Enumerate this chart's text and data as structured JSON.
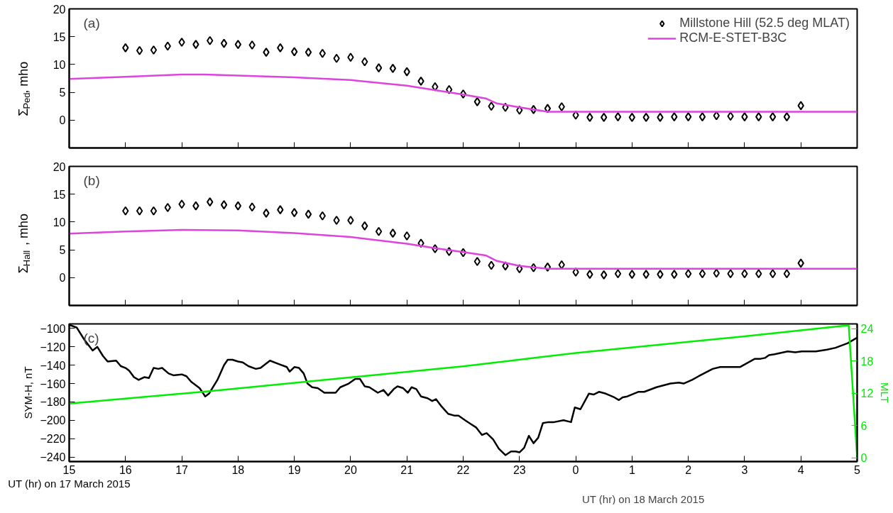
{
  "chart_data": [
    {
      "type": "scatter",
      "ylabel": "Σ$_{Ped}$, mho",
      "annotations": [
        "(a)"
      ],
      "xlim": [
        "2015-03-17T15:00",
        "2015-03-18T05:00"
      ],
      "xticks": [
        "2015-03-17T15:00",
        "2015-03-17T16:00",
        "2015-03-17T17:00",
        "2015-03-17T18:00",
        "2015-03-17T19:00",
        "2015-03-17T20:00",
        "2015-03-17T21:00",
        "2015-03-17T22:00",
        "2015-03-17T23:00",
        "2015-03-18T00:00",
        "2015-03-18T01:00",
        "2015-03-18T02:00",
        "2015-03-18T03:00",
        "2015-03-18T04:00",
        "2015-03-18T05:00"
      ],
      "ylim": [
        -5,
        20
      ],
      "yticks": [
        0,
        5,
        10,
        15,
        20
      ],
      "tick_labels": "y",
      "grid": false,
      "legend": "top right",
      "series": [
        {
          "name": "Millstone Hill (52.5 deg MLAT)",
          "marker": "diamond",
          "color": "#000000",
          "x": [
            "2015-03-17T16:00",
            "2015-03-17T16:15",
            "2015-03-17T16:30",
            "2015-03-17T16:45",
            "2015-03-17T17:00",
            "2015-03-17T17:15",
            "2015-03-17T17:30",
            "2015-03-17T17:45",
            "2015-03-17T18:00",
            "2015-03-17T18:15",
            "2015-03-17T18:30",
            "2015-03-17T18:45",
            "2015-03-17T19:00",
            "2015-03-17T19:15",
            "2015-03-17T19:30",
            "2015-03-17T19:45",
            "2015-03-17T20:00",
            "2015-03-17T20:15",
            "2015-03-17T20:30",
            "2015-03-17T20:45",
            "2015-03-17T21:00",
            "2015-03-17T21:15",
            "2015-03-17T21:30",
            "2015-03-17T21:45",
            "2015-03-17T22:00",
            "2015-03-17T22:15",
            "2015-03-17T22:30",
            "2015-03-17T22:45",
            "2015-03-17T23:00",
            "2015-03-17T23:15",
            "2015-03-17T23:30",
            "2015-03-17T23:45",
            "2015-03-18T00:00",
            "2015-03-18T00:15",
            "2015-03-18T00:30",
            "2015-03-18T00:45",
            "2015-03-18T01:00",
            "2015-03-18T01:15",
            "2015-03-18T01:30",
            "2015-03-18T01:45",
            "2015-03-18T02:00",
            "2015-03-18T02:15",
            "2015-03-18T02:30",
            "2015-03-18T02:45",
            "2015-03-18T03:00",
            "2015-03-18T03:15",
            "2015-03-18T03:30",
            "2015-03-18T03:45",
            "2015-03-18T04:00"
          ],
          "values": [
            13,
            12.5,
            12.6,
            13.3,
            14,
            13.6,
            14.3,
            13.8,
            13.6,
            13.5,
            12.2,
            13,
            12.3,
            12.2,
            12,
            11.1,
            11.3,
            10.5,
            9.4,
            9.3,
            8.7,
            7,
            6,
            5.5,
            4.7,
            3.3,
            2.5,
            2.3,
            1.8,
            1.9,
            2.1,
            2.4,
            0.9,
            0.5,
            0.5,
            0.6,
            0.5,
            0.5,
            0.5,
            0.6,
            0.6,
            0.6,
            0.8,
            0.7,
            0.6,
            0.6,
            0.6,
            0.6,
            2.6
          ]
        },
        {
          "name": "RCM-E-STET-B3C",
          "type": "line",
          "color": "#dd44dd",
          "x": [
            "2015-03-17T15:00",
            "2015-03-17T16:00",
            "2015-03-17T17:00",
            "2015-03-17T17:24",
            "2015-03-17T18:00",
            "2015-03-17T19:00",
            "2015-03-17T20:00",
            "2015-03-17T21:00",
            "2015-03-17T21:30",
            "2015-03-17T22:00",
            "2015-03-17T22:24",
            "2015-03-17T22:36",
            "2015-03-17T23:00",
            "2015-03-17T23:30",
            "2015-03-18T00:00",
            "2015-03-18T05:00"
          ],
          "values": [
            7.4,
            7.8,
            8.2,
            8.2,
            8,
            7.7,
            7.2,
            6.2,
            5.4,
            4.6,
            3.9,
            3.0,
            2.3,
            1.5,
            1.5,
            1.5
          ]
        }
      ]
    },
    {
      "type": "scatter",
      "ylabel": "Σ$_{Hall}$, mho",
      "annotations": [
        "(b)"
      ],
      "xlim": [
        "2015-03-17T15:00",
        "2015-03-18T05:00"
      ],
      "xticks": [
        "2015-03-17T15:00",
        "2015-03-17T16:00",
        "2015-03-17T17:00",
        "2015-03-17T18:00",
        "2015-03-17T19:00",
        "2015-03-17T20:00",
        "2015-03-17T21:00",
        "2015-03-17T22:00",
        "2015-03-17T23:00",
        "2015-03-18T00:00",
        "2015-03-18T01:00",
        "2015-03-18T02:00",
        "2015-03-18T03:00",
        "2015-03-18T04:00",
        "2015-03-18T05:00"
      ],
      "ylim": [
        -5,
        20
      ],
      "yticks": [
        0,
        5,
        10,
        15,
        20
      ],
      "tick_labels": "y",
      "grid": false,
      "series": [
        {
          "marker": "diamond",
          "color": "#000000",
          "x": [
            "2015-03-17T16:00",
            "2015-03-17T16:15",
            "2015-03-17T16:30",
            "2015-03-17T16:45",
            "2015-03-17T17:00",
            "2015-03-17T17:15",
            "2015-03-17T17:30",
            "2015-03-17T17:45",
            "2015-03-17T18:00",
            "2015-03-17T18:15",
            "2015-03-17T18:30",
            "2015-03-17T18:45",
            "2015-03-17T19:00",
            "2015-03-17T19:15",
            "2015-03-17T19:30",
            "2015-03-17T19:45",
            "2015-03-17T20:00",
            "2015-03-17T20:15",
            "2015-03-17T20:30",
            "2015-03-17T20:45",
            "2015-03-17T21:00",
            "2015-03-17T21:15",
            "2015-03-17T21:30",
            "2015-03-17T21:45",
            "2015-03-17T22:00",
            "2015-03-17T22:15",
            "2015-03-17T22:30",
            "2015-03-17T22:45",
            "2015-03-17T23:00",
            "2015-03-17T23:15",
            "2015-03-17T23:30",
            "2015-03-17T23:45",
            "2015-03-18T00:00",
            "2015-03-18T00:15",
            "2015-03-18T00:30",
            "2015-03-18T00:45",
            "2015-03-18T01:00",
            "2015-03-18T01:15",
            "2015-03-18T01:30",
            "2015-03-18T01:45",
            "2015-03-18T02:00",
            "2015-03-18T02:15",
            "2015-03-18T02:30",
            "2015-03-18T02:45",
            "2015-03-18T03:00",
            "2015-03-18T03:15",
            "2015-03-18T03:30",
            "2015-03-18T03:45",
            "2015-03-18T04:00"
          ],
          "values": [
            12,
            12,
            12,
            12.6,
            13.2,
            12.9,
            13.6,
            13.1,
            12.9,
            12.7,
            11.6,
            12.2,
            11.7,
            11.4,
            11.1,
            10.3,
            10.3,
            9.3,
            8.3,
            8,
            7.5,
            6.2,
            5.2,
            4.7,
            4.5,
            2.9,
            2.2,
            2.1,
            1.6,
            1.8,
            1.9,
            2.3,
            1,
            0.6,
            0.5,
            0.7,
            0.6,
            0.6,
            0.6,
            0.6,
            0.7,
            0.7,
            0.8,
            0.7,
            0.7,
            0.7,
            0.7,
            0.7,
            2.6
          ]
        },
        {
          "type": "line",
          "color": "#dd44dd",
          "x": [
            "2015-03-17T15:00",
            "2015-03-17T16:00",
            "2015-03-17T17:00",
            "2015-03-17T18:00",
            "2015-03-17T19:00",
            "2015-03-17T20:00",
            "2015-03-17T21:00",
            "2015-03-17T21:30",
            "2015-03-17T22:00",
            "2015-03-17T22:24",
            "2015-03-17T22:36",
            "2015-03-17T23:00",
            "2015-03-17T23:30",
            "2015-03-18T00:00",
            "2015-03-18T05:00"
          ],
          "values": [
            7.9,
            8.3,
            8.6,
            8.5,
            8,
            7.3,
            6.1,
            5.3,
            4.6,
            4.0,
            3.0,
            2.1,
            1.6,
            1.6,
            1.6
          ]
        }
      ]
    },
    {
      "type": "line",
      "ylabel": "SYM-H, nT",
      "y2label": "MLT",
      "xlabel": "UT (hr) on 17 March 2015",
      "annotations": [
        "(c)",
        "UT (hr) on 18 March 2015"
      ],
      "xlim": [
        "2015-03-17T15:00",
        "2015-03-18T05:00"
      ],
      "xticks": [
        {
          "value": "2015-03-17T15:00",
          "label": "15"
        },
        {
          "value": "2015-03-17T16:00",
          "label": "16"
        },
        {
          "value": "2015-03-17T17:00",
          "label": "17"
        },
        {
          "value": "2015-03-17T18:00",
          "label": "18"
        },
        {
          "value": "2015-03-17T19:00",
          "label": "19"
        },
        {
          "value": "2015-03-17T20:00",
          "label": "20"
        },
        {
          "value": "2015-03-17T21:00",
          "label": "21"
        },
        {
          "value": "2015-03-17T22:00",
          "label": "22"
        },
        {
          "value": "2015-03-17T23:00",
          "label": "23"
        },
        {
          "value": "2015-03-18T00:00",
          "label": "0"
        },
        {
          "value": "2015-03-18T01:00",
          "label": "1"
        },
        {
          "value": "2015-03-18T02:00",
          "label": "2"
        },
        {
          "value": "2015-03-18T03:00",
          "label": "3"
        },
        {
          "value": "2015-03-18T04:00",
          "label": "4"
        },
        {
          "value": "2015-03-18T05:00",
          "label": "5"
        }
      ],
      "ylim": [
        -245,
        -95
      ],
      "yticks": [
        -100,
        -120,
        -140,
        -160,
        -180,
        -200,
        -220,
        -240
      ],
      "y2lim": [
        -0.7,
        24.9
      ],
      "y2ticks": [
        0,
        6,
        12,
        18,
        24
      ],
      "grid": false,
      "series": [
        {
          "color": "#000000",
          "x": [
            "2015-03-17T15:00",
            "2015-03-17T15:08",
            "2015-03-17T15:16",
            "2015-03-17T15:25",
            "2015-03-17T15:30",
            "2015-03-17T15:36",
            "2015-03-17T15:41",
            "2015-03-17T15:50",
            "2015-03-17T15:55",
            "2015-03-17T16:00",
            "2015-03-17T16:04",
            "2015-03-17T16:09",
            "2015-03-17T16:14",
            "2015-03-17T16:20",
            "2015-03-17T16:25",
            "2015-03-17T16:30",
            "2015-03-17T16:35",
            "2015-03-17T16:39",
            "2015-03-17T16:46",
            "2015-03-17T16:51",
            "2015-03-17T17:00",
            "2015-03-17T17:05",
            "2015-03-17T17:10",
            "2015-03-17T17:19",
            "2015-03-17T17:25",
            "2015-03-17T17:29",
            "2015-03-17T17:38",
            "2015-03-17T17:45",
            "2015-03-17T17:49",
            "2015-03-17T17:54",
            "2015-03-17T18:00",
            "2015-03-17T18:05",
            "2015-03-17T18:11",
            "2015-03-17T18:19",
            "2015-03-17T18:24",
            "2015-03-17T18:34",
            "2015-03-17T18:44",
            "2015-03-17T18:52",
            "2015-03-17T18:55",
            "2015-03-17T19:00",
            "2015-03-17T19:05",
            "2015-03-17T19:10",
            "2015-03-17T19:14",
            "2015-03-17T19:19",
            "2015-03-17T19:25",
            "2015-03-17T19:32",
            "2015-03-17T19:38",
            "2015-03-17T19:44",
            "2015-03-17T19:49",
            "2015-03-17T19:58",
            "2015-03-17T20:05",
            "2015-03-17T20:10",
            "2015-03-17T20:15",
            "2015-03-17T20:20",
            "2015-03-17T20:29",
            "2015-03-17T20:35",
            "2015-03-17T20:40",
            "2015-03-17T20:46",
            "2015-03-17T20:50",
            "2015-03-17T20:56",
            "2015-03-17T21:01",
            "2015-03-17T21:05",
            "2015-03-17T21:10",
            "2015-03-17T21:15",
            "2015-03-17T21:22",
            "2015-03-17T21:27",
            "2015-03-17T21:31",
            "2015-03-17T21:37",
            "2015-03-17T21:44",
            "2015-03-17T21:51",
            "2015-03-17T21:55",
            "2015-03-17T22:02",
            "2015-03-17T22:08",
            "2015-03-17T22:14",
            "2015-03-17T22:20",
            "2015-03-17T22:25",
            "2015-03-17T22:32",
            "2015-03-17T22:38",
            "2015-03-17T22:45",
            "2015-03-17T22:51",
            "2015-03-17T22:56",
            "2015-03-17T23:00",
            "2015-03-17T23:05",
            "2015-03-17T23:10",
            "2015-03-17T23:15",
            "2015-03-17T23:20",
            "2015-03-17T23:25",
            "2015-03-17T23:31",
            "2015-03-17T23:37",
            "2015-03-17T23:47",
            "2015-03-17T23:55",
            "2015-03-17T23:59",
            "2015-03-18T00:05",
            "2015-03-18T00:14",
            "2015-03-18T00:19",
            "2015-03-18T00:25",
            "2015-03-18T00:32",
            "2015-03-18T00:41",
            "2015-03-18T00:46",
            "2015-03-18T00:50",
            "2015-03-18T00:55",
            "2015-03-18T01:07",
            "2015-03-18T01:13",
            "2015-03-18T01:26",
            "2015-03-18T01:41",
            "2015-03-18T01:50",
            "2015-03-18T01:55",
            "2015-03-18T02:04",
            "2015-03-18T02:11",
            "2015-03-18T02:26",
            "2015-03-18T02:34",
            "2015-03-18T02:41",
            "2015-03-18T02:55",
            "2015-03-18T03:11",
            "2015-03-18T03:17",
            "2015-03-18T03:22",
            "2015-03-18T03:26",
            "2015-03-18T03:32",
            "2015-03-18T03:46",
            "2015-03-18T03:54",
            "2015-03-18T04:01",
            "2015-03-18T04:10",
            "2015-03-18T04:16",
            "2015-03-18T04:28",
            "2015-03-18T04:37",
            "2015-03-18T04:50",
            "2015-03-18T05:00"
          ],
          "values": [
            -96,
            -99,
            -112,
            -124,
            -120,
            -130,
            -136,
            -135,
            -141,
            -143,
            -146,
            -153,
            -156,
            -153,
            -154,
            -143,
            -144,
            -143,
            -149,
            -151,
            -150,
            -152,
            -158,
            -165,
            -174,
            -171,
            -156,
            -140,
            -134,
            -134,
            -136,
            -137,
            -141,
            -144,
            -143,
            -135,
            -139,
            -142,
            -147,
            -142,
            -143,
            -149,
            -160,
            -164,
            -165,
            -170,
            -170,
            -170,
            -164,
            -160,
            -155,
            -155,
            -163,
            -164,
            -170,
            -167,
            -173,
            -166,
            -163,
            -165,
            -170,
            -164,
            -166,
            -174,
            -176,
            -179,
            -177,
            -185,
            -193,
            -195,
            -195,
            -200,
            -204,
            -208,
            -216,
            -214,
            -221,
            -231,
            -238,
            -234,
            -234,
            -235,
            -230,
            -217,
            -225,
            -219,
            -203,
            -202,
            -202,
            -200,
            -202,
            -186,
            -188,
            -171,
            -172,
            -169,
            -171,
            -175,
            -178,
            -175,
            -174,
            -169,
            -169,
            -164,
            -160,
            -159,
            -160,
            -156,
            -152,
            -144,
            -142,
            -142,
            -142,
            -133,
            -133,
            -132,
            -129,
            -128,
            -125,
            -126,
            -125,
            -125,
            -125,
            -123,
            -121,
            -116,
            -110
          ]
        },
        {
          "axis": "y2",
          "color": "#00ee00",
          "x": [
            "2015-03-17T15:00",
            "2015-03-17T17:30",
            "2015-03-17T22:00",
            "2015-03-18T00:00",
            "2015-03-18T03:00",
            "2015-03-18T04:43",
            "2015-03-18T04:51",
            "2015-03-18T05:00"
          ],
          "values": [
            10.1,
            12.4,
            17.0,
            19.5,
            22.6,
            24.5,
            24.6,
            0
          ]
        }
      ]
    }
  ]
}
